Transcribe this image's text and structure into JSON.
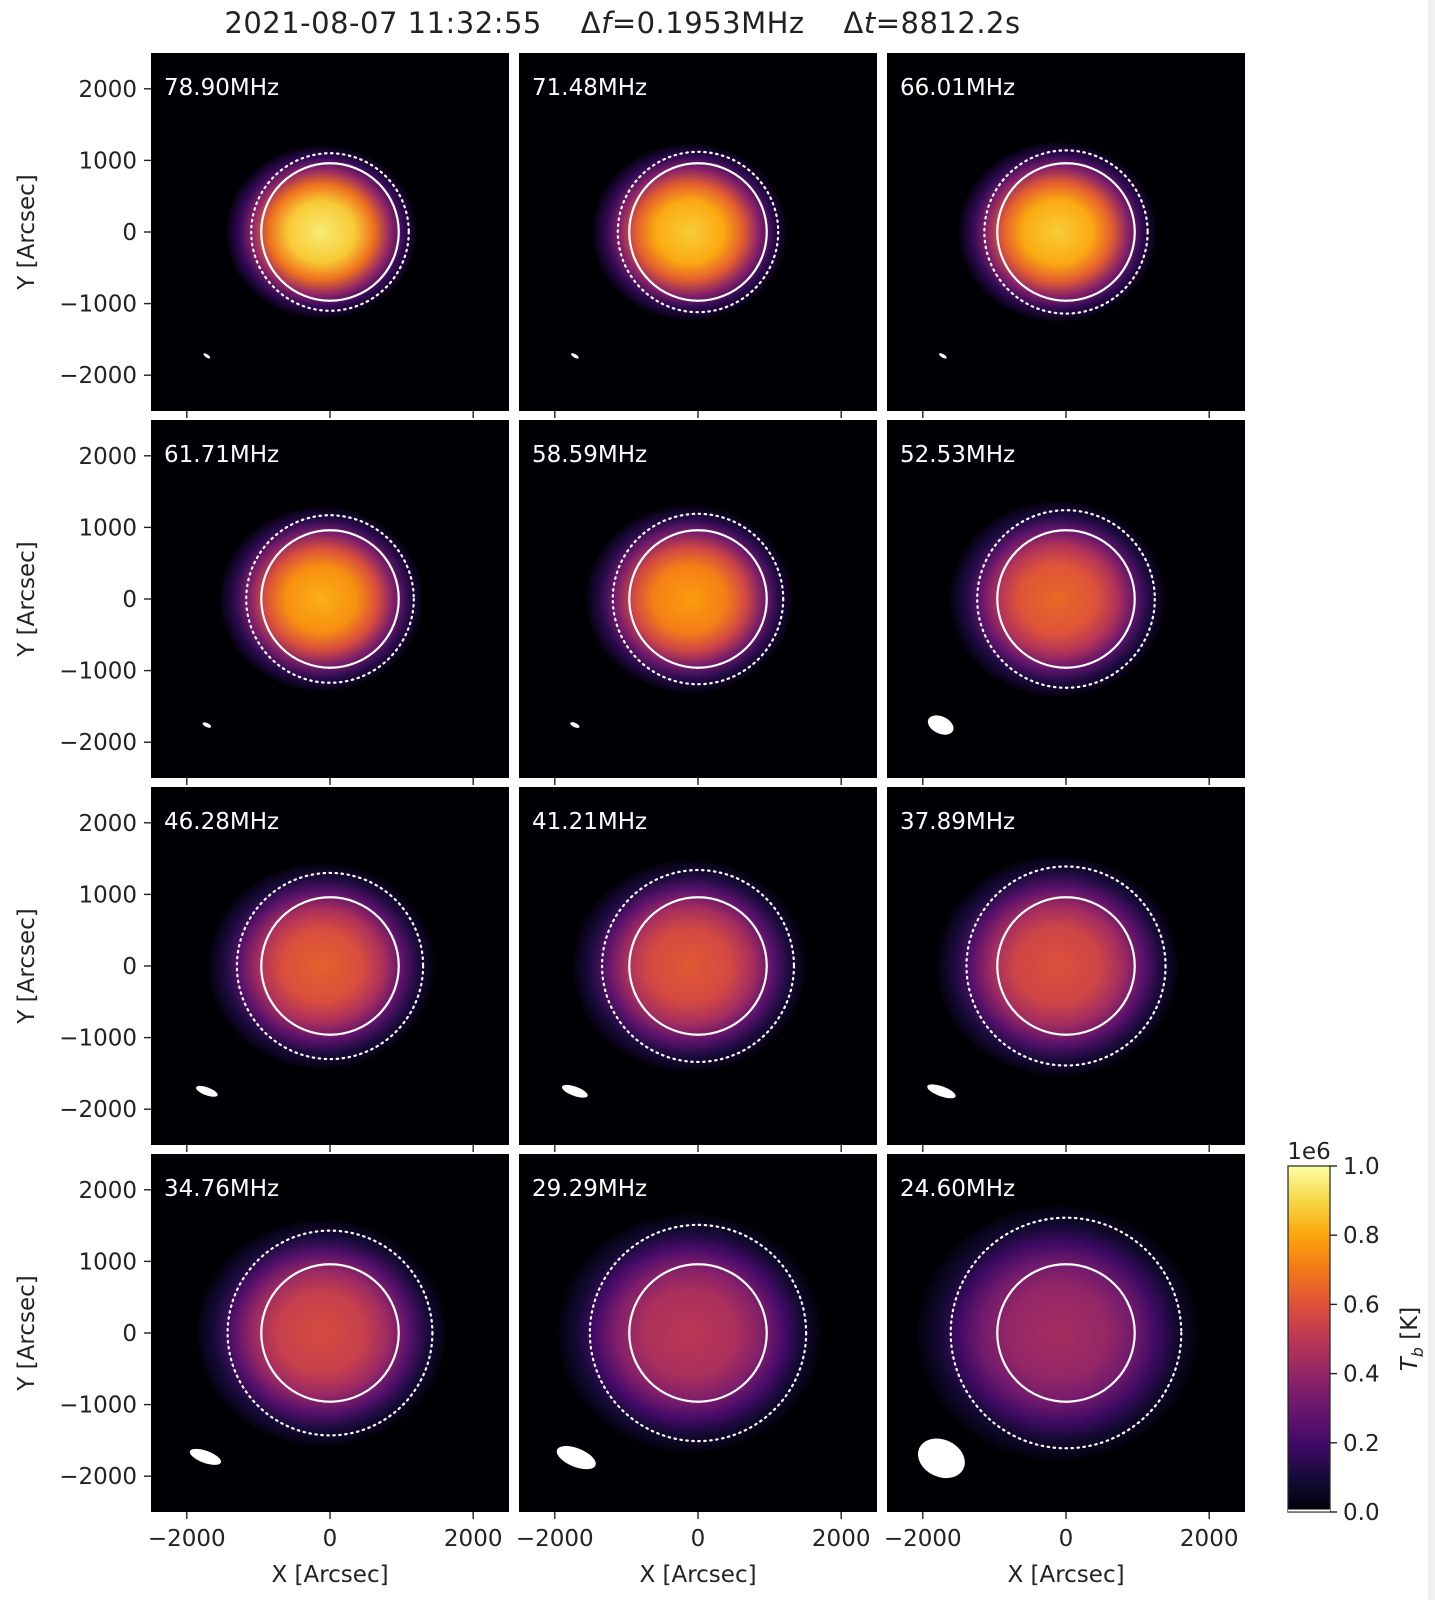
{
  "figure": {
    "title_parts": {
      "datetime": "2021-08-07 11:32:55",
      "df_symbol": "Δ",
      "df_var": "f",
      "df_value": "=0.1953MHz",
      "dt_symbol": "Δ",
      "dt_var": "t",
      "dt_value": "=8812.2s"
    }
  },
  "chart_data": {
    "type": "heatmap",
    "grid": {
      "rows": 4,
      "cols": 3
    },
    "xlabel": "X [Arcsec]",
    "ylabel": "Y [Arcsec]",
    "xlim": [
      -2500,
      2500
    ],
    "ylim": [
      -2500,
      2500
    ],
    "xticks": [
      -2000,
      0,
      2000
    ],
    "yticks": [
      -2000,
      -1000,
      0,
      1000,
      2000
    ],
    "xtick_labels": [
      "−2000",
      "0",
      "2000"
    ],
    "ytick_labels": [
      "−2000",
      "−1000",
      "0",
      "1000",
      "2000"
    ],
    "solar_disk_radius": 960,
    "colormap": "inferno",
    "colorbar": {
      "label_main": "T",
      "label_sub": "b",
      "label_unit": " [K]",
      "multiplier": "1e6",
      "range": [
        0.0,
        1.0
      ],
      "ticks": [
        0.0,
        0.2,
        0.4,
        0.6,
        0.8,
        1.0
      ],
      "tick_labels": [
        "0.0",
        "0.2",
        "0.4",
        "0.6",
        "0.8",
        "1.0"
      ]
    },
    "panels": [
      {
        "freq": "78.90MHz",
        "dotted_radius": 1100,
        "peak": 0.95,
        "beam": {
          "x": -1720,
          "y": -1730,
          "a": 55,
          "b": 22,
          "angle": -35
        }
      },
      {
        "freq": "71.48MHz",
        "dotted_radius": 1120,
        "peak": 0.88,
        "beam": {
          "x": -1720,
          "y": -1730,
          "a": 60,
          "b": 24,
          "angle": -30
        }
      },
      {
        "freq": "66.01MHz",
        "dotted_radius": 1140,
        "peak": 0.88,
        "beam": {
          "x": -1720,
          "y": -1730,
          "a": 60,
          "b": 24,
          "angle": -30
        }
      },
      {
        "freq": "61.71MHz",
        "dotted_radius": 1170,
        "peak": 0.82,
        "beam": {
          "x": -1720,
          "y": -1760,
          "a": 65,
          "b": 28,
          "angle": -25
        }
      },
      {
        "freq": "58.59MHz",
        "dotted_radius": 1190,
        "peak": 0.78,
        "beam": {
          "x": -1720,
          "y": -1760,
          "a": 70,
          "b": 30,
          "angle": -25
        }
      },
      {
        "freq": "52.53MHz",
        "dotted_radius": 1240,
        "peak": 0.66,
        "beam": {
          "x": -1750,
          "y": -1760,
          "a": 190,
          "b": 120,
          "angle": -25
        }
      },
      {
        "freq": "46.28MHz",
        "dotted_radius": 1300,
        "peak": 0.64,
        "beam": {
          "x": -1720,
          "y": -1750,
          "a": 160,
          "b": 55,
          "angle": -20
        }
      },
      {
        "freq": "41.21MHz",
        "dotted_radius": 1340,
        "peak": 0.62,
        "beam": {
          "x": -1720,
          "y": -1750,
          "a": 190,
          "b": 65,
          "angle": -20
        }
      },
      {
        "freq": "37.89MHz",
        "dotted_radius": 1390,
        "peak": 0.6,
        "beam": {
          "x": -1740,
          "y": -1750,
          "a": 210,
          "b": 70,
          "angle": -20
        }
      },
      {
        "freq": "34.76MHz",
        "dotted_radius": 1430,
        "peak": 0.58,
        "beam": {
          "x": -1740,
          "y": -1730,
          "a": 230,
          "b": 85,
          "angle": -20
        }
      },
      {
        "freq": "29.29MHz",
        "dotted_radius": 1510,
        "peak": 0.5,
        "beam": {
          "x": -1700,
          "y": -1740,
          "a": 290,
          "b": 130,
          "angle": -22
        }
      },
      {
        "freq": "24.60MHz",
        "dotted_radius": 1610,
        "peak": 0.44,
        "beam": {
          "x": -1740,
          "y": -1750,
          "a": 340,
          "b": 260,
          "angle": -25
        }
      }
    ]
  }
}
